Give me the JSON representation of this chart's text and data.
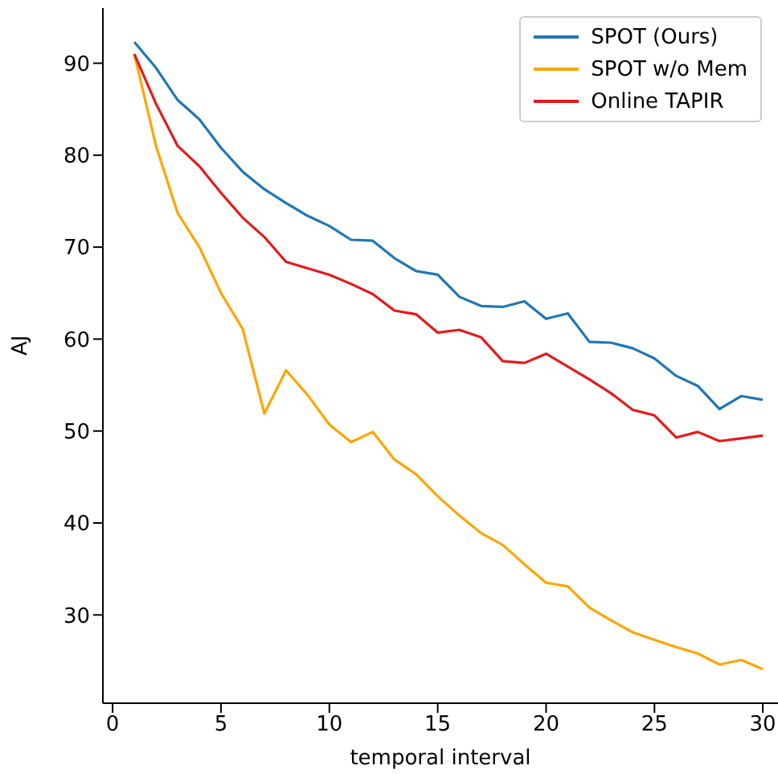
{
  "chart_data": {
    "type": "line",
    "xlabel": "temporal interval",
    "ylabel": "AJ",
    "x": [
      1,
      2,
      3,
      4,
      5,
      6,
      7,
      8,
      9,
      10,
      11,
      12,
      13,
      14,
      15,
      16,
      17,
      18,
      19,
      20,
      21,
      22,
      23,
      24,
      25,
      26,
      27,
      28,
      29,
      30
    ],
    "series": [
      {
        "name": "SPOT (Ours)",
        "color": "#1f77b4",
        "values": [
          92.3,
          89.5,
          86,
          83.9,
          80.8,
          78.2,
          76.3,
          74.8,
          73.4,
          72.3,
          70.8,
          70.7,
          68.8,
          67.4,
          67,
          64.6,
          63.6,
          63.5,
          64.1,
          62.2,
          62.8,
          59.7,
          59.6,
          59,
          57.9,
          56,
          54.9,
          52.4,
          53.8,
          53.4
        ]
      },
      {
        "name": "SPOT w/o Mem",
        "color": "#ffa500",
        "values": [
          91,
          81,
          73.7,
          70,
          65,
          61.1,
          51.9,
          56.6,
          53.9,
          50.7,
          48.8,
          49.9,
          46.9,
          45.3,
          42.9,
          40.8,
          38.9,
          37.6,
          35.5,
          33.5,
          33.1,
          30.8,
          29.4,
          28.1,
          27.3,
          26.5,
          25.8,
          24.6,
          25.1,
          24.1
        ]
      },
      {
        "name": "Online TAPIR",
        "color": "#e41a1c",
        "values": [
          91,
          85.6,
          81,
          78.8,
          75.9,
          73.2,
          71.1,
          68.4,
          67.7,
          67,
          66,
          64.9,
          63.1,
          62.7,
          60.7,
          61,
          60.2,
          57.6,
          57.4,
          58.4,
          57,
          55.6,
          54.1,
          52.3,
          51.7,
          49.3,
          49.9,
          48.9,
          49.2,
          49.5
        ]
      }
    ],
    "xlim": [
      -0.45,
      30.7
    ],
    "xticks": [
      0,
      5,
      10,
      15,
      20,
      25,
      30
    ],
    "ylim": [
      20.4,
      96
    ],
    "yticks": [
      30,
      40,
      50,
      60,
      70,
      80,
      90
    ],
    "legend": "top right",
    "grid": false,
    "marker": "none",
    "line_style": "solid"
  }
}
